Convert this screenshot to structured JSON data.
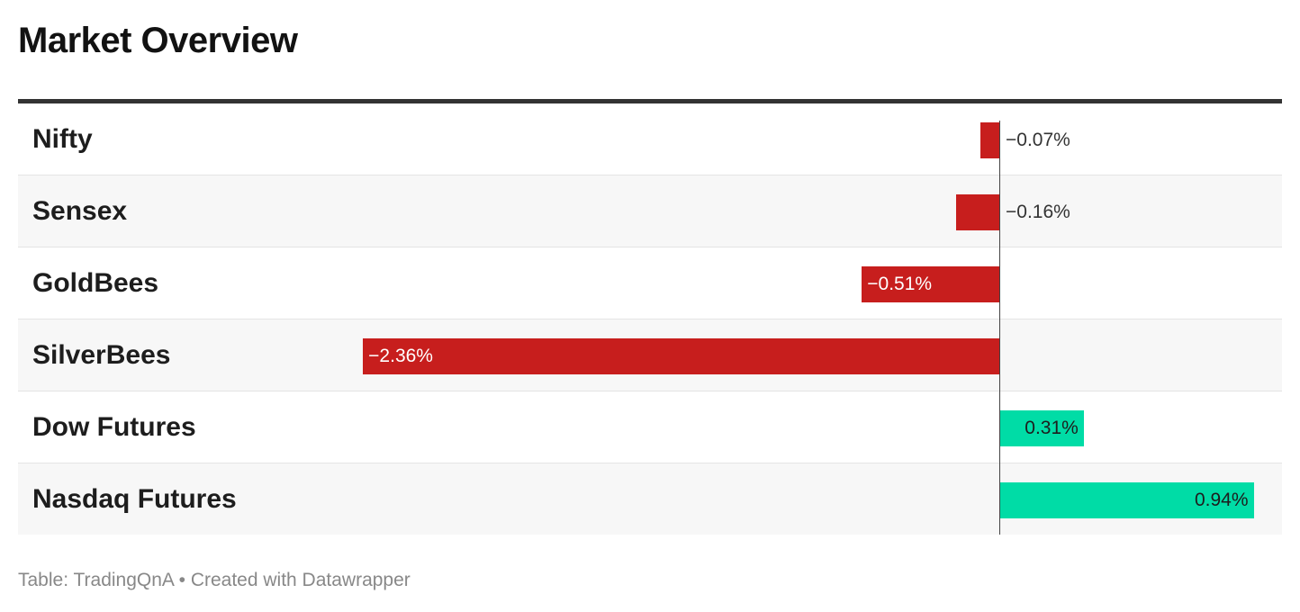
{
  "title": "Market Overview",
  "footer": {
    "source_label": "Table: TradingQnA",
    "separator": "•",
    "credit": "Created with Datawrapper"
  },
  "colors": {
    "negative": "#c71e1d",
    "positive": "#00dca6",
    "header_rule": "#333333"
  },
  "chart_data": {
    "type": "bar",
    "orientation": "horizontal",
    "categories": [
      "Nifty",
      "Sensex",
      "GoldBees",
      "SilverBees",
      "Dow Futures",
      "Nasdaq Futures"
    ],
    "values": [
      -0.07,
      -0.16,
      -0.51,
      -2.36,
      0.31,
      0.94
    ],
    "value_labels": [
      "−0.07%",
      "−0.16%",
      "−0.51%",
      "−2.36%",
      "0.31%",
      "0.94%"
    ],
    "unit": "%",
    "grid": false
  }
}
